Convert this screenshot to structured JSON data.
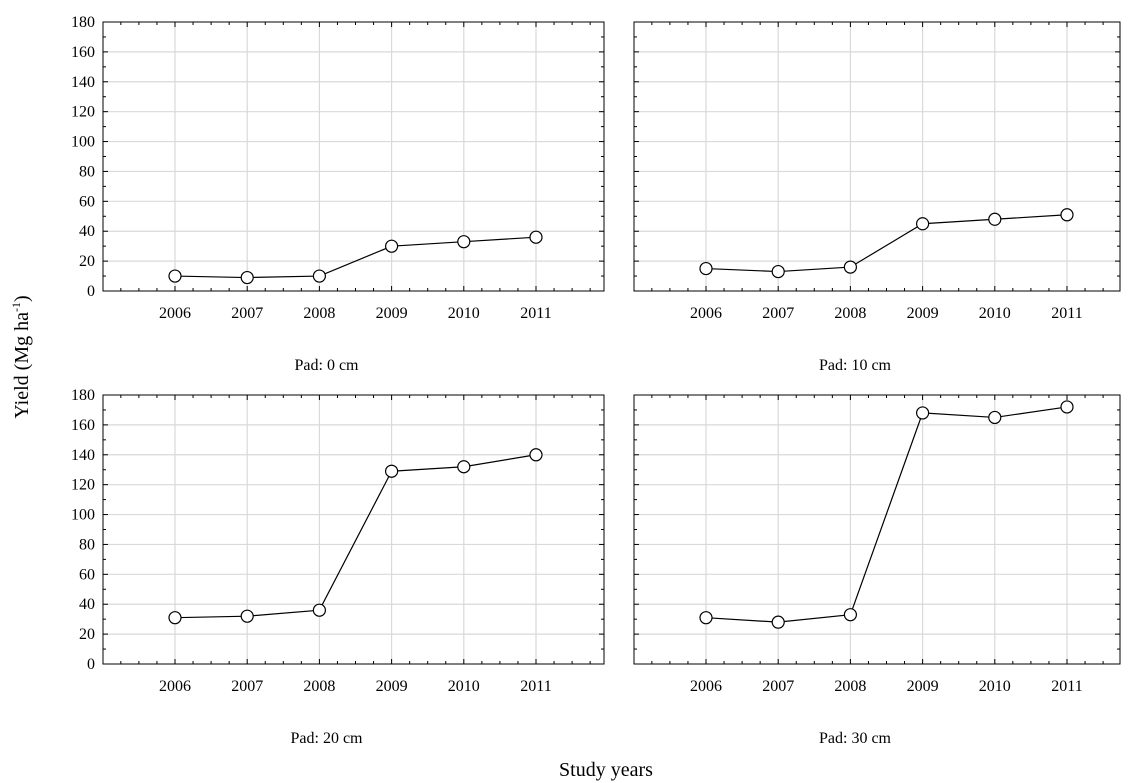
{
  "chart_data": {
    "type": "line",
    "ylabel": "Yield (Mg ha",
    "ylabel_sup": "-1",
    "ylabel_close": ")",
    "xlabel": "Study years",
    "x": [
      "2006",
      "2007",
      "2008",
      "2009",
      "2010",
      "2011"
    ],
    "ylim": [
      0,
      180
    ],
    "yticks": [
      "0",
      "20",
      "40",
      "60",
      "80",
      "100",
      "120",
      "140",
      "160",
      "180"
    ],
    "grid": true,
    "marker": "open-circle",
    "panels": [
      {
        "title": "Pad: 0 cm",
        "values": [
          10,
          9,
          10,
          30,
          33,
          36
        ]
      },
      {
        "title": "Pad: 10 cm",
        "values": [
          15,
          13,
          16,
          45,
          48,
          51
        ]
      },
      {
        "title": "Pad: 20 cm",
        "values": [
          31,
          32,
          36,
          129,
          132,
          140
        ]
      },
      {
        "title": "Pad: 30 cm",
        "values": [
          31,
          28,
          33,
          168,
          165,
          172
        ]
      }
    ]
  }
}
